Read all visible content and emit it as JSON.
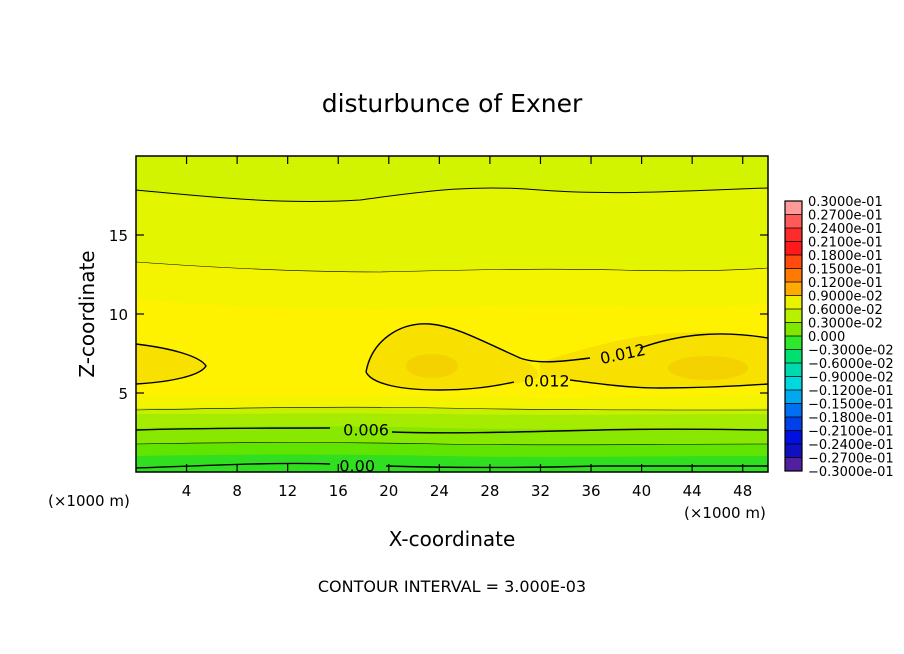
{
  "chart_data": {
    "type": "contour",
    "title": "disturbunce of Exner",
    "xlabel": "X-coordinate",
    "ylabel": "Z-coordinate",
    "x_unit": "(×1000 m)",
    "xlim": [
      0,
      50
    ],
    "ylim": [
      0,
      20
    ],
    "xticks": [
      4,
      8,
      12,
      16,
      20,
      24,
      28,
      32,
      36,
      40,
      44,
      48
    ],
    "yticks": [
      5,
      10,
      15
    ],
    "footer": "CONTOUR INTERVAL = 3.000E-03",
    "contour_labels": [
      {
        "text": "0.012",
        "x": 38.5,
        "y": 7.5
      },
      {
        "text": "0.012",
        "x": 32.5,
        "y": 5.8
      },
      {
        "text": "0.006",
        "x": 18.2,
        "y": 2.7
      },
      {
        "text": "0.00",
        "x": 17.5,
        "y": 0.4
      }
    ],
    "colorbar": {
      "levels": [
        "0.3000e-01",
        "0.2700e-01",
        "0.2400e-01",
        "0.2100e-01",
        "0.1800e-01",
        "0.1500e-01",
        "0.1200e-01",
        "0.9000e-02",
        "0.6000e-02",
        "0.3000e-02",
        "0.000",
        "−0.3000e-02",
        "−0.6000e-02",
        "−0.9000e-02",
        "−0.1200e-01",
        "−0.1500e-01",
        "−0.1800e-01",
        "−0.2100e-01",
        "−0.2400e-01",
        "−0.2700e-01",
        "−0.3000e-01"
      ],
      "colors": [
        "#ff9a9a",
        "#ff5a5a",
        "#ff2a2a",
        "#ff1a1a",
        "#ff4a10",
        "#ff7a00",
        "#ffaa00",
        "#eaf200",
        "#b8f000",
        "#7fe800",
        "#2ee82e",
        "#00e070",
        "#00d8b0",
        "#00d8e0",
        "#00a8f0",
        "#0070f0",
        "#0040e8",
        "#0010e0",
        "#1010c0",
        "#5020a0"
      ]
    }
  }
}
